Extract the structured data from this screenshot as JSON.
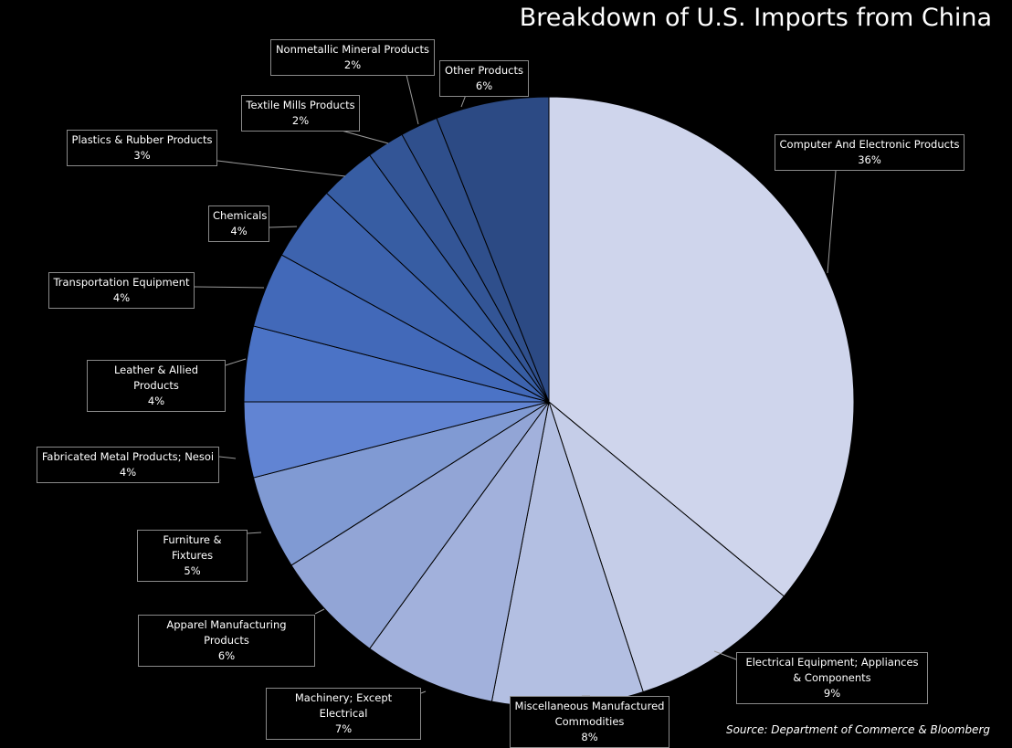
{
  "chart_data": {
    "type": "pie",
    "title": "Breakdown of U.S. Imports from China",
    "source": "Source: Department of Commerce & Bloomberg",
    "start": "12 o'clock",
    "direction": "clockwise",
    "slices": [
      {
        "label": "Computer And Electronic Products",
        "value": 36,
        "value_label": "36%",
        "color": "#cfd5ec"
      },
      {
        "label": "Electrical Equipment; Appliances & Components",
        "value": 9,
        "value_label": "9%",
        "color": "#c5cde8"
      },
      {
        "label": "Miscellaneous Manufactured Commodities",
        "value": 8,
        "value_label": "8%",
        "color": "#b3bfe2"
      },
      {
        "label": "Machinery; Except Electrical",
        "value": 7,
        "value_label": "7%",
        "color": "#a2b1dc"
      },
      {
        "label": "Apparel Manufacturing Products",
        "value": 6,
        "value_label": "6%",
        "color": "#92a5d6"
      },
      {
        "label": "Furniture & Fixtures",
        "value": 5,
        "value_label": "5%",
        "color": "#809ad3"
      },
      {
        "label": "Fabricated Metal Products; Nesoi",
        "value": 4,
        "value_label": "4%",
        "color": "#6184d3"
      },
      {
        "label": "Leather & Allied Products",
        "value": 4,
        "value_label": "4%",
        "color": "#4b73c6"
      },
      {
        "label": "Transportation Equipment",
        "value": 4,
        "value_label": "4%",
        "color": "#4269b9"
      },
      {
        "label": "Chemicals",
        "value": 4,
        "value_label": "4%",
        "color": "#3d63ae"
      },
      {
        "label": "Plastics & Rubber Products",
        "value": 3,
        "value_label": "3%",
        "color": "#375da3"
      },
      {
        "label": "Textile Mills Products",
        "value": 2,
        "value_label": "2%",
        "color": "#335596"
      },
      {
        "label": "Nonmetallic Mineral Products",
        "value": 2,
        "value_label": "2%",
        "color": "#2f4f8c"
      },
      {
        "label": "Other Products",
        "value": 6,
        "value_label": "6%",
        "color": "#2c4a84"
      }
    ]
  }
}
